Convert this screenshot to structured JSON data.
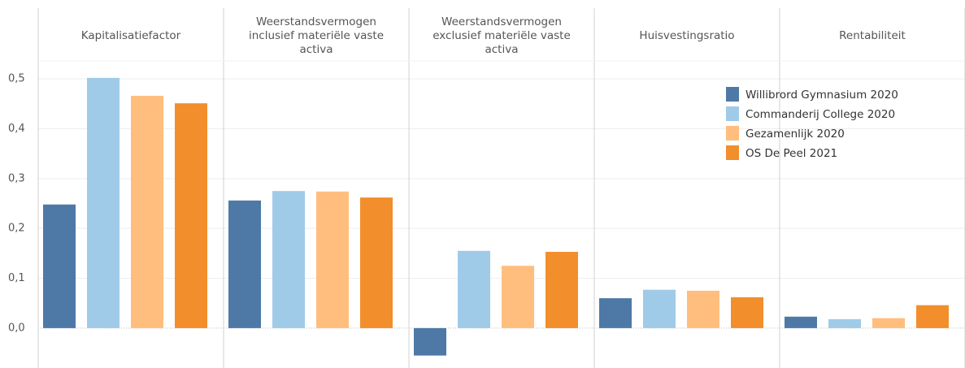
{
  "chart_data": {
    "type": "bar",
    "categories": [
      "Kapitalisatiefactor",
      "Weerstandsvermogen inclusief materiële vaste activa",
      "Weerstandsvermogen exclusief materiële vaste activa",
      "Huisvestingsratio",
      "Rentabiliteit"
    ],
    "series": [
      {
        "name": "Willibrord Gymnasium 2020",
        "color": "#4e79a7",
        "values": [
          0.248,
          0.256,
          -0.055,
          0.06,
          0.023
        ]
      },
      {
        "name": "Commanderij College 2020",
        "color": "#a0cbe8",
        "values": [
          0.502,
          0.275,
          0.155,
          0.077,
          0.018
        ]
      },
      {
        "name": "Gezamenlijk 2020",
        "color": "#ffbe7d",
        "values": [
          0.466,
          0.274,
          0.125,
          0.075,
          0.02
        ]
      },
      {
        "name": "OS De Peel 2021",
        "color": "#f28e2b",
        "values": [
          0.451,
          0.262,
          0.153,
          0.062,
          0.046
        ]
      }
    ],
    "ylim": [
      -0.08,
      0.536
    ],
    "yticks": [
      {
        "value": 0,
        "label": "0,0"
      },
      {
        "value": 0.1,
        "label": "0,1"
      },
      {
        "value": 0.2,
        "label": "0,2"
      },
      {
        "value": 0.3,
        "label": "0,3"
      },
      {
        "value": 0.4,
        "label": "0,4"
      },
      {
        "value": 0.5,
        "label": "0,5"
      }
    ],
    "grid": true,
    "legend": "upper right"
  }
}
